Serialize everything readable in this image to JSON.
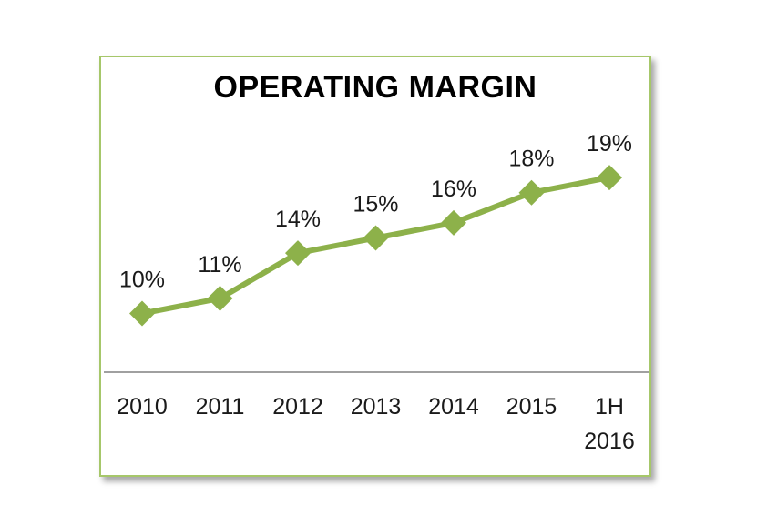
{
  "chart_data": {
    "type": "line",
    "title": "OPERATING MARGIN",
    "categories": [
      [
        "2010"
      ],
      [
        "2011"
      ],
      [
        "2012"
      ],
      [
        "2013"
      ],
      [
        "2014"
      ],
      [
        "2015"
      ],
      [
        "1H",
        "2016"
      ]
    ],
    "values": [
      10,
      11,
      14,
      15,
      16,
      18,
      19
    ],
    "data_labels": [
      "10%",
      "11%",
      "14%",
      "15%",
      "16%",
      "18%",
      "19%"
    ],
    "unit": "%",
    "xlabel": "",
    "ylabel": "",
    "grid": false,
    "legend": "none",
    "line_color": "#8db14a",
    "marker": "diamond",
    "axis_color": "#a0a0a0",
    "border_color": "#a6c76a"
  }
}
